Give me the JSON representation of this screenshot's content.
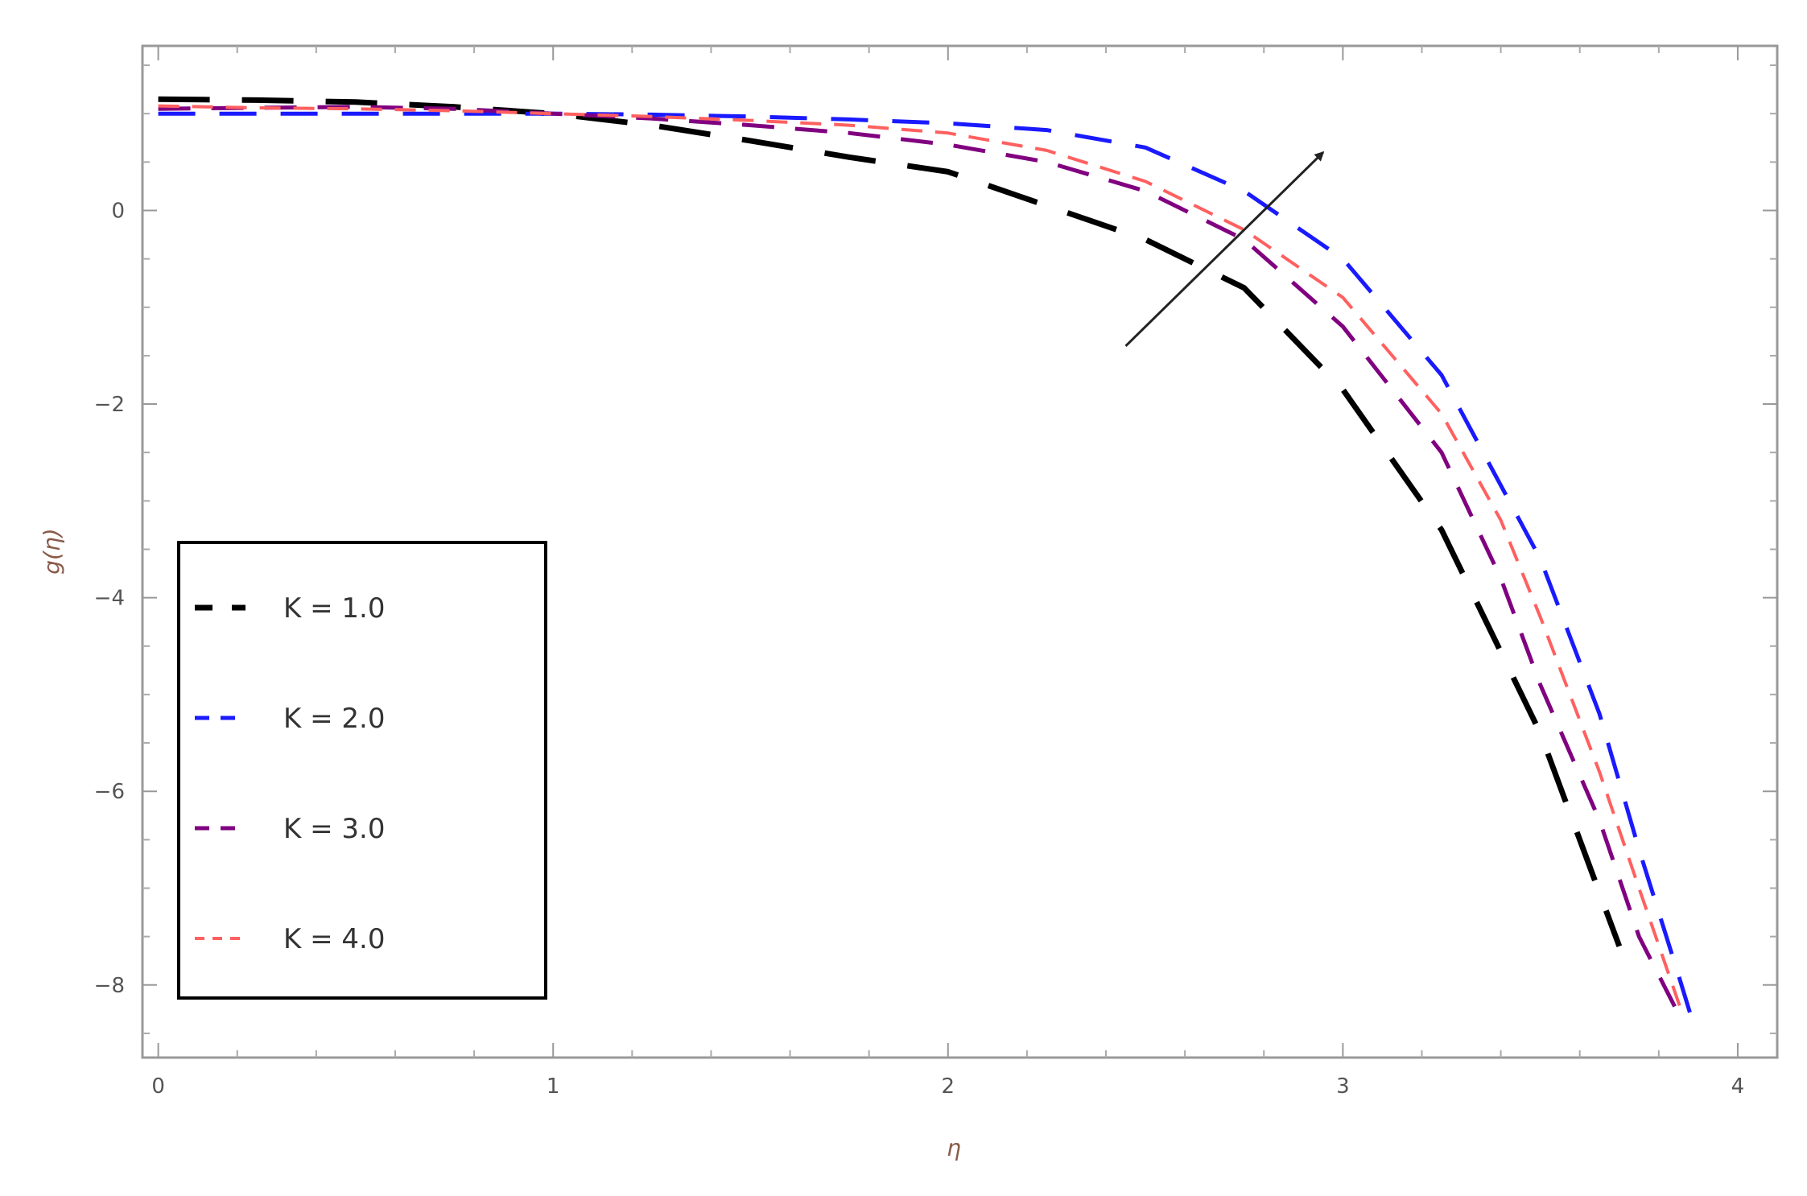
{
  "chart_data": {
    "type": "line",
    "xlabel": "η",
    "ylabel": "g(η)",
    "xlim": [
      -0.04,
      4.1
    ],
    "ylim": [
      -8.75,
      1.7
    ],
    "xticks": [
      "0",
      "1",
      "2",
      "3",
      "4"
    ],
    "yticks": [
      "0",
      "-2",
      "-4",
      "-6",
      "-8"
    ],
    "grid": false,
    "legend_position": "lower-left",
    "series": [
      {
        "name": "K = 1.0",
        "color": "#000000",
        "dash": "long",
        "x": [
          0,
          0.25,
          0.5,
          0.75,
          1.0,
          1.25,
          1.5,
          1.75,
          2.0,
          2.25,
          2.5,
          2.75,
          3.0,
          3.25,
          3.5,
          3.6,
          3.7
        ],
        "y": [
          1.15,
          1.14,
          1.12,
          1.07,
          1.0,
          0.88,
          0.72,
          0.55,
          0.4,
          0.05,
          -0.3,
          -0.8,
          -1.85,
          -3.3,
          -5.4,
          -6.5,
          -7.6
        ]
      },
      {
        "name": "K = 2.0",
        "color": "#1a1aff",
        "dash": "medium",
        "x": [
          0,
          0.25,
          0.5,
          0.75,
          1.0,
          1.25,
          1.5,
          1.75,
          2.0,
          2.25,
          2.5,
          2.75,
          3.0,
          3.25,
          3.5,
          3.65,
          3.75,
          3.85,
          3.88
        ],
        "y": [
          1.0,
          1.0,
          1.0,
          1.0,
          1.0,
          0.99,
          0.97,
          0.94,
          0.9,
          0.83,
          0.65,
          0.2,
          -0.5,
          -1.7,
          -3.6,
          -5.2,
          -6.6,
          -7.9,
          -8.3
        ]
      },
      {
        "name": "K = 3.0",
        "color": "#800080",
        "dash": "short",
        "x": [
          0,
          0.25,
          0.5,
          0.75,
          1.0,
          1.25,
          1.5,
          1.75,
          2.0,
          2.25,
          2.5,
          2.75,
          3.0,
          3.25,
          3.4,
          3.5,
          3.65,
          3.75,
          3.85
        ],
        "y": [
          1.05,
          1.06,
          1.07,
          1.05,
          1.0,
          0.95,
          0.88,
          0.8,
          0.68,
          0.5,
          0.2,
          -0.3,
          -1.2,
          -2.5,
          -3.8,
          -4.9,
          -6.3,
          -7.5,
          -8.3
        ]
      },
      {
        "name": "K = 4.0",
        "color": "#ff6060",
        "dash": "dotted",
        "x": [
          0,
          0.25,
          0.5,
          0.75,
          1.0,
          1.25,
          1.5,
          1.75,
          2.0,
          2.25,
          2.5,
          2.75,
          3.0,
          3.25,
          3.4,
          3.5,
          3.65,
          3.75,
          3.86
        ],
        "y": [
          1.08,
          1.06,
          1.05,
          1.03,
          1.0,
          0.97,
          0.93,
          0.88,
          0.8,
          0.62,
          0.3,
          -0.2,
          -0.9,
          -2.1,
          -3.2,
          -4.2,
          -5.8,
          -7.0,
          -8.3
        ]
      }
    ],
    "annotations": [
      {
        "type": "arrow",
        "from": [
          2.45,
          -1.4
        ],
        "to": [
          2.95,
          0.6
        ],
        "color": "#222222"
      }
    ]
  }
}
